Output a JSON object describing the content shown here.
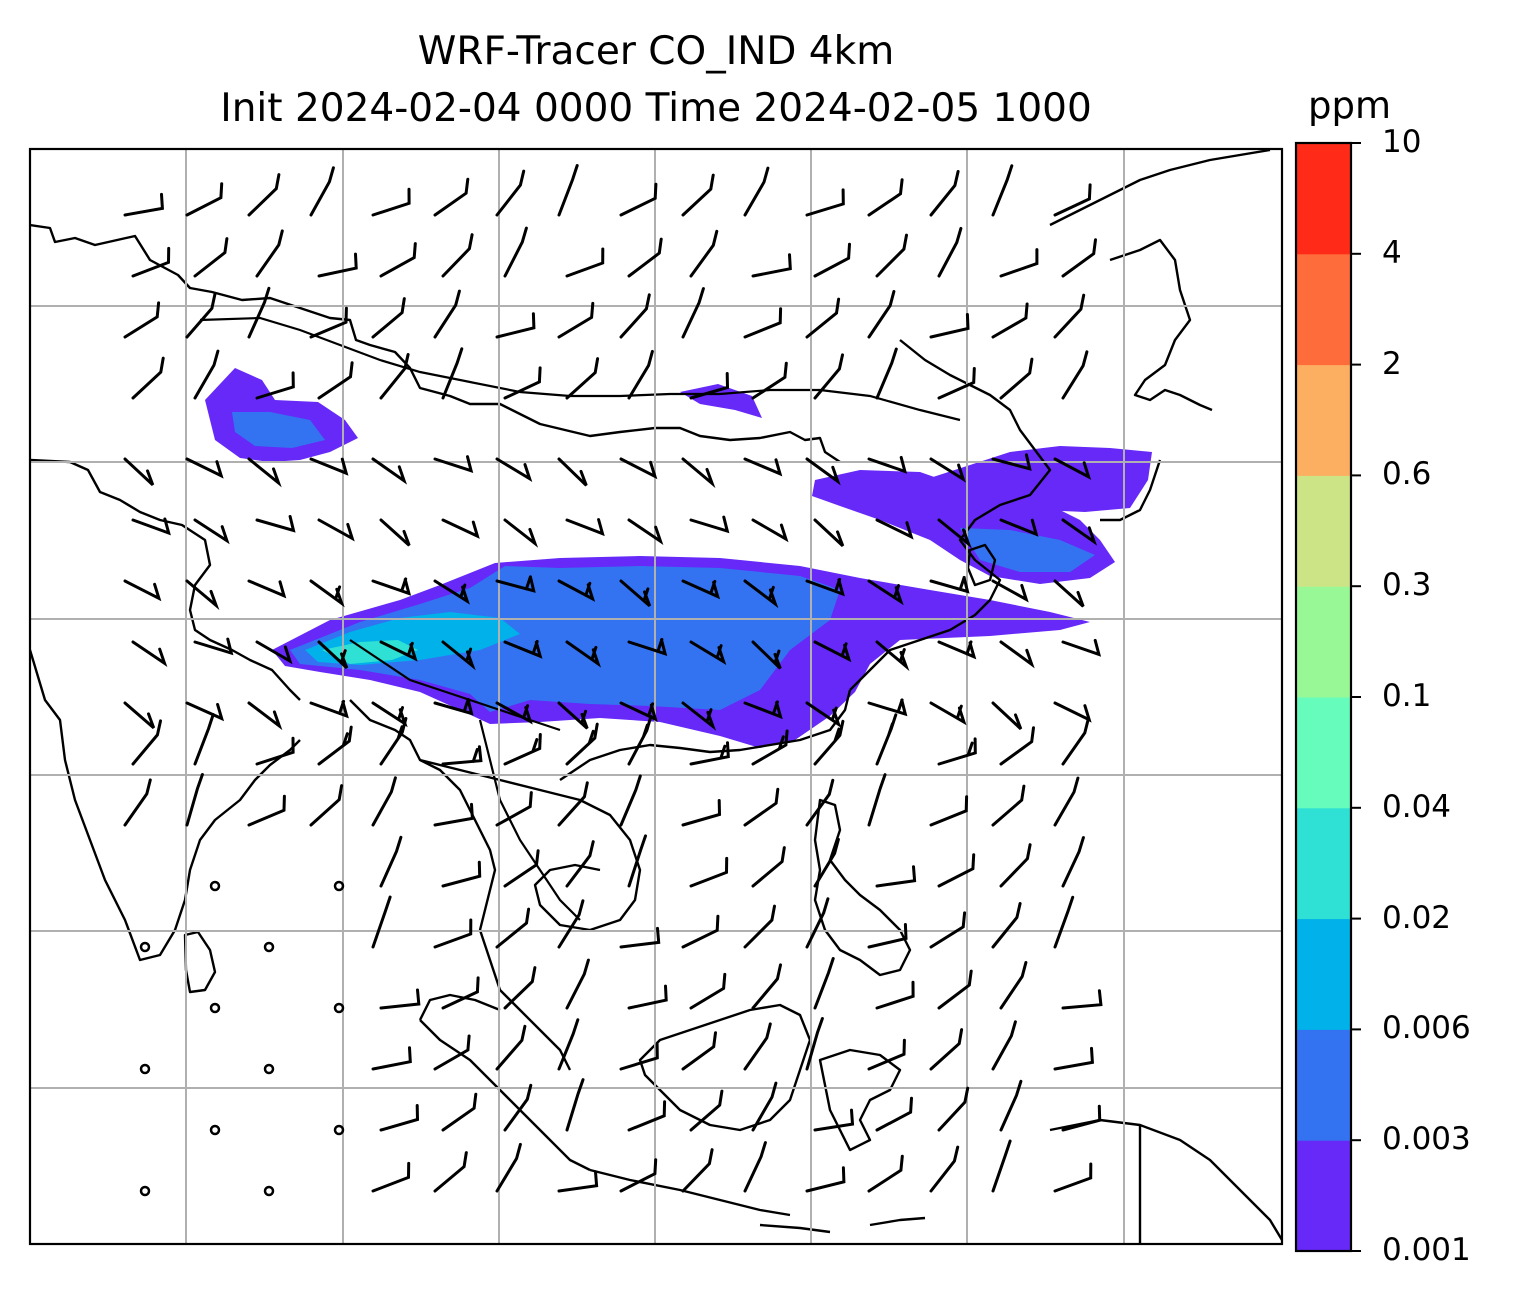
{
  "title": {
    "line1": "WRF-Tracer CO_IND 4km",
    "line2": "Init 2024-02-04 0000 Time 2024-02-05 1000"
  },
  "colorbar": {
    "unit": "ppm",
    "levels": [
      "0.001",
      "0.003",
      "0.006",
      "0.02",
      "0.04",
      "0.1",
      "0.3",
      "0.6",
      "2",
      "4",
      "10"
    ],
    "colors": [
      "#6629f8",
      "#3373f2",
      "#00b1ea",
      "#2ee1d4",
      "#65fcbc",
      "#99f896",
      "#cde486",
      "#fcae61",
      "#ff6c3c",
      "#ff2a17"
    ]
  },
  "map": {
    "gridlines": true,
    "field": "CO_IND tracer concentration",
    "overlay": "wind barbs"
  }
}
